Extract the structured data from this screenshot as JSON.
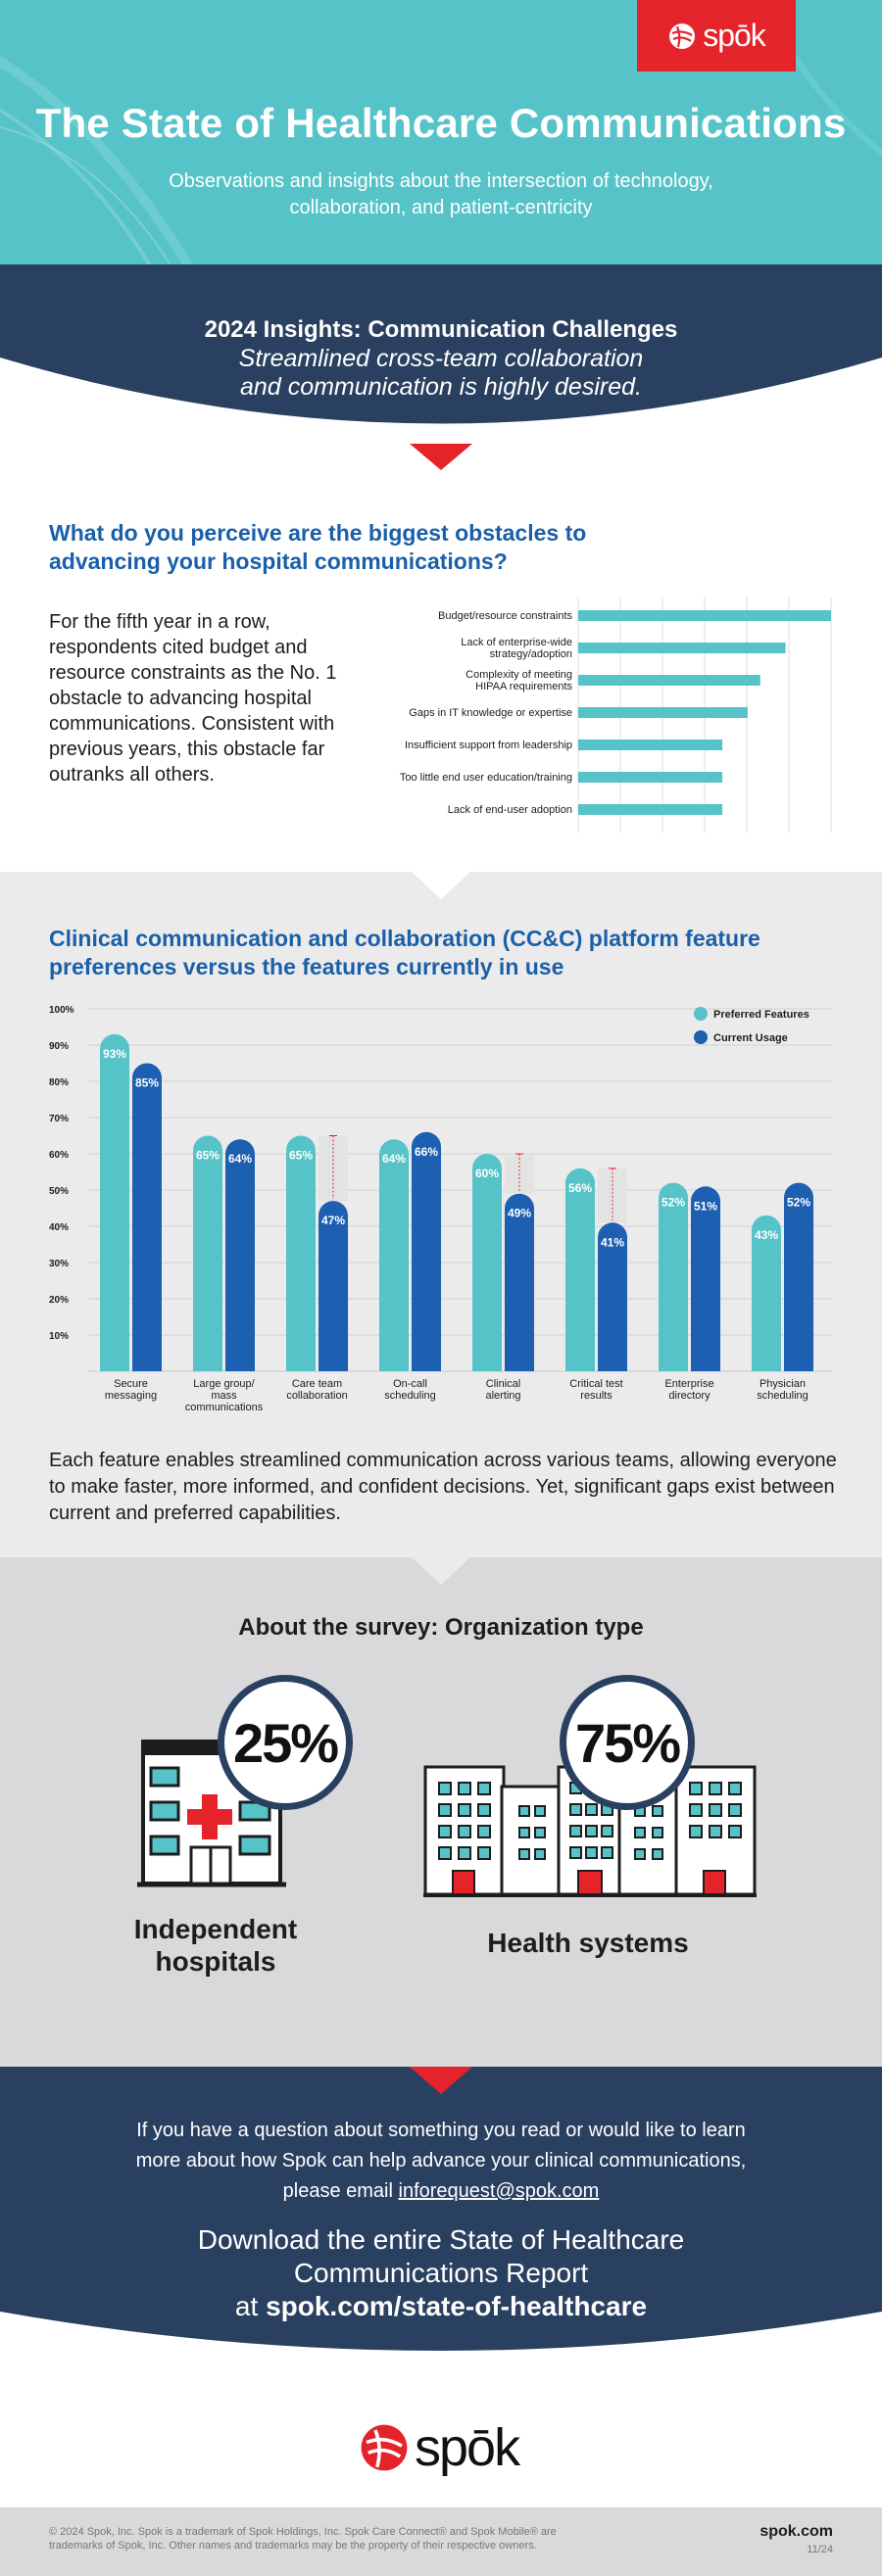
{
  "brand": {
    "name": "spōk",
    "accent_red": "#e5232b",
    "teal": "#56c3c8",
    "navy": "#2a4060",
    "blue": "#1a5fa8",
    "current_usage_color": "#1d5fb0"
  },
  "hero": {
    "title": "The State of Healthcare Communications",
    "subtitle": "Observations and insights about the intersection of technology, collaboration, and patient-centricity"
  },
  "insights": {
    "title": "2024 Insights: Communication Challenges",
    "subtitle_line1": "Streamlined cross-team collaboration",
    "subtitle_line2": "and communication is highly desired."
  },
  "obstacles": {
    "title": "What do you perceive are the biggest obstacles to advancing your hospital communications?",
    "paragraph": "For the fifth year in a row, respondents cited budget and resource constraints as the No. 1 obstacle to advancing hospital communications. Consistent with previous years, this obstacle far outranks all others."
  },
  "ccc": {
    "title": "Clinical communication and collaboration (CC&C) platform feature preferences versus the features currently in use",
    "paragraph": "Each feature enables streamlined communication across various teams, allowing everyone to make faster, more informed, and confident decisions. Yet, significant gaps exist between current and preferred capabilities."
  },
  "chart_data": [
    {
      "type": "bar",
      "orientation": "horizontal",
      "categories": [
        [
          "Budget/resource constraints"
        ],
        [
          "Lack of enterprise-wide",
          "strategy/adoption"
        ],
        [
          "Complexity of meeting",
          "HIPAA requirements"
        ],
        [
          "Gaps in IT knowledge or expertise"
        ],
        [
          "Insufficient support from leadership"
        ],
        [
          "Too little end user education/training"
        ],
        [
          "Lack of end-user adoption"
        ]
      ],
      "values": [
        100,
        82,
        72,
        67,
        57,
        57,
        57
      ],
      "value_note": "bars unlabeled; relative lengths only",
      "grid": true
    },
    {
      "type": "bar",
      "orientation": "vertical",
      "categories": [
        [
          "Secure",
          "messaging"
        ],
        [
          "Large group/",
          "mass",
          "communications"
        ],
        [
          "Care team",
          "collaboration"
        ],
        [
          "On-call",
          "scheduling"
        ],
        [
          "Clinical",
          "alerting"
        ],
        [
          "Critical test",
          "results"
        ],
        [
          "Enterprise",
          "directory"
        ],
        [
          "Physician",
          "scheduling"
        ]
      ],
      "series": [
        {
          "name": "Preferred Features",
          "color": "#56c3c8",
          "values": [
            93,
            65,
            65,
            64,
            60,
            56,
            52,
            43
          ]
        },
        {
          "name": "Current Usage",
          "color": "#1d5fb0",
          "values": [
            85,
            64,
            47,
            66,
            49,
            41,
            51,
            52
          ]
        }
      ],
      "yticks": [
        "100%",
        "90%",
        "80%",
        "70%",
        "60%",
        "50%",
        "40%",
        "30%",
        "20%",
        "10%"
      ],
      "ylim": [
        0,
        100
      ],
      "gap_markers_for_categories": [
        2,
        4,
        5
      ],
      "legend": "top-right",
      "grid": true
    }
  ],
  "survey": {
    "title": "About the survey: Organization type",
    "independent_pct": "25%",
    "independent_label_line1": "Independent",
    "independent_label_line2": "hospitals",
    "systems_pct": "75%",
    "systems_label": "Health systems"
  },
  "contact": {
    "line1": "If you have a question about something you read or would like to learn",
    "line2": "more about how Spok can help advance your clinical communications,",
    "line3_prefix": "please email ",
    "email": "inforequest@spok.com"
  },
  "download": {
    "line1": "Download the entire State of Healthcare",
    "line2": "Communications Report",
    "line3_prefix": "at ",
    "url": "spok.com/state-of-healthcare"
  },
  "footer": {
    "legal_line1": "© 2024 Spok, Inc. Spok is a trademark of Spok Holdings, Inc. Spok Care Connect® and Spok Mobile® are",
    "legal_line2": "trademarks of Spok, Inc. Other names and trademarks may be the property of their respective owners.",
    "site": "spok.com",
    "date": "11/24"
  }
}
